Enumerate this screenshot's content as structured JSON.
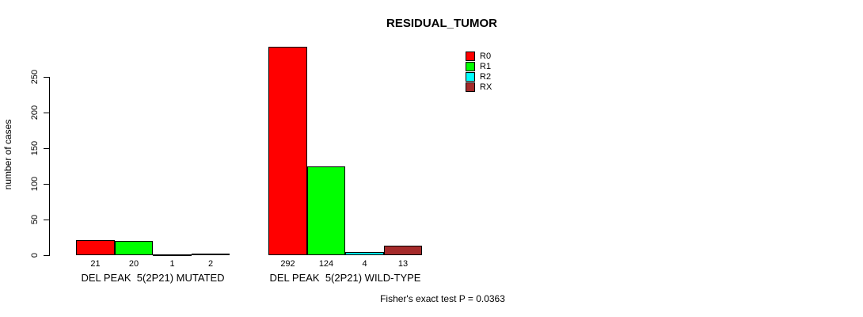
{
  "chart_data": {
    "type": "bar",
    "title": "RESIDUAL_TUMOR",
    "ylabel": "number of cases",
    "xlabel": "",
    "ylim": [
      0,
      292
    ],
    "yticks": [
      0,
      50,
      100,
      150,
      200,
      250
    ],
    "grid": false,
    "legend_position": "top-right",
    "bar_border_color": "#000000",
    "categories": [
      "DEL PEAK  5(2P21) MUTATED",
      "DEL PEAK  5(2P21) WILD-TYPE"
    ],
    "series": [
      {
        "name": "R0",
        "color": "#FF0000",
        "values": [
          21,
          292
        ]
      },
      {
        "name": "R1",
        "color": "#00FF00",
        "values": [
          20,
          124
        ]
      },
      {
        "name": "R2",
        "color": "#00FFFF",
        "values": [
          1,
          4
        ]
      },
      {
        "name": "RX",
        "color": "#A52A2A",
        "values": [
          2,
          13
        ]
      }
    ],
    "bar_value_labels": [
      [
        "21",
        "20",
        "1",
        "2"
      ],
      [
        "292",
        "124",
        "4",
        "13"
      ]
    ],
    "footnote": "Fisher's exact test P = 0.0363"
  }
}
